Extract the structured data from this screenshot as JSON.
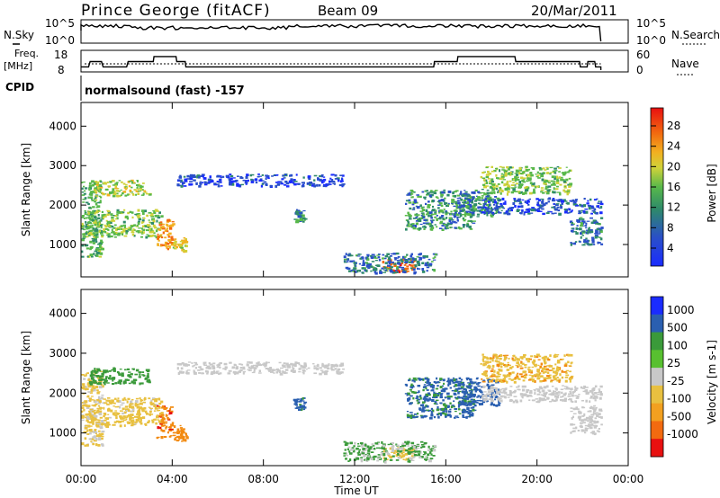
{
  "header": {
    "station": "Prince George (fitACF)",
    "beam": "Beam 09",
    "date": "20/Mar/2011"
  },
  "top_panels": {
    "nsky_label": "N.Sky",
    "nsky_ticks": [
      "10^5",
      "10^0"
    ],
    "nsearch_label": "N.Search",
    "nsearch_ticks": [
      "10^5",
      "10^0"
    ],
    "freq_label_1": "Freq.",
    "freq_label_2": "[MHz]",
    "freq_ticks": [
      "18",
      "8"
    ],
    "nave_label": "Nave",
    "nave_ticks": [
      "60",
      "0"
    ],
    "cpid_label": "CPID",
    "cpid_text": "normalsound (fast) -157",
    "freq_trace_mhz": [
      [
        0.0,
        10.0
      ],
      [
        0.33,
        10.0
      ],
      [
        0.4,
        13.3
      ],
      [
        0.9,
        13.3
      ],
      [
        0.97,
        10.0
      ],
      [
        2.0,
        10.0
      ],
      [
        2.07,
        13.3
      ],
      [
        3.17,
        13.3
      ],
      [
        3.2,
        16.4
      ],
      [
        4.17,
        16.4
      ],
      [
        4.2,
        13.3
      ],
      [
        4.57,
        13.3
      ],
      [
        4.6,
        10.0
      ],
      [
        15.47,
        10.0
      ],
      [
        15.5,
        13.3
      ],
      [
        16.5,
        13.3
      ],
      [
        16.53,
        16.4
      ],
      [
        19.03,
        16.4
      ],
      [
        19.07,
        13.3
      ],
      [
        21.87,
        13.3
      ],
      [
        21.9,
        10.0
      ],
      [
        22.2,
        10.0
      ],
      [
        22.23,
        13.3
      ],
      [
        22.53,
        13.3
      ],
      [
        22.57,
        10.0
      ],
      [
        22.8,
        10.0
      ],
      [
        22.8,
        8.0
      ]
    ]
  },
  "power_panel": {
    "ylabel": "Slant Range [km]",
    "colorbar_label": "Power [dB]",
    "colorbar_ticks": [
      "28",
      "24",
      "20",
      "16",
      "12",
      "8",
      "4"
    ]
  },
  "velocity_panel": {
    "ylabel": "Slant Range [km]",
    "colorbar_label": "Velocity [m s-1]",
    "colorbar_ticks": [
      "1000",
      "500",
      "100",
      "25",
      "-25",
      "-100",
      "-500",
      "-1000"
    ]
  },
  "x_axis": {
    "label": "Time UT",
    "ticks": [
      "00:00",
      "04:00",
      "08:00",
      "12:00",
      "16:00",
      "20:00",
      "00:00"
    ]
  },
  "chart_data": {
    "type": "heatmap",
    "title": "Prince George (fitACF)  Beam 09  20/Mar/2011",
    "xlabel": "Time UT",
    "ylabel": "Slant Range [km]",
    "xlim_hours": [
      0,
      24
    ],
    "ylim_km": [
      180,
      4600
    ],
    "x_tick_hours": [
      0,
      4,
      8,
      12,
      16,
      20,
      24
    ],
    "y_ticks_km": [
      1000,
      2000,
      3000,
      4000
    ],
    "panels": [
      "Power [dB]",
      "Velocity [m s-1]"
    ],
    "data_end_hour": 22.8,
    "echo_regions": [
      {
        "t0": 0.0,
        "t1": 0.9,
        "r0": 700,
        "r1": 2600,
        "power_db": 14,
        "velocity": -30
      },
      {
        "t0": 0.2,
        "t1": 3.5,
        "r0": 1200,
        "r1": 1900,
        "power_db": 16,
        "velocity": -40
      },
      {
        "t0": 0.3,
        "t1": 3.0,
        "r0": 2250,
        "r1": 2650,
        "power_db": 17,
        "velocity": 60
      },
      {
        "t0": 3.3,
        "t1": 4.0,
        "r0": 900,
        "r1": 1700,
        "power_db": 24,
        "velocity": -400
      },
      {
        "t0": 4.0,
        "t1": 4.6,
        "r0": 800,
        "r1": 1200,
        "power_db": 20,
        "velocity": -300
      },
      {
        "t0": 4.2,
        "t1": 11.5,
        "r0": 2500,
        "r1": 2800,
        "power_db": 7,
        "velocity": 10
      },
      {
        "t0": 9.3,
        "t1": 9.8,
        "r0": 1600,
        "r1": 1900,
        "power_db": 12,
        "velocity": 150
      },
      {
        "t0": 13.2,
        "t1": 14.6,
        "r0": 330,
        "r1": 650,
        "power_db": 28,
        "velocity": -60
      },
      {
        "t0": 11.5,
        "t1": 15.5,
        "r0": 300,
        "r1": 800,
        "power_db": 10,
        "velocity": 30
      },
      {
        "t0": 14.2,
        "t1": 17.2,
        "r0": 1400,
        "r1": 2400,
        "power_db": 12,
        "velocity": 120
      },
      {
        "t0": 16.5,
        "t1": 18.3,
        "r0": 1700,
        "r1": 2400,
        "power_db": 11,
        "velocity": 200
      },
      {
        "t0": 17.5,
        "t1": 21.5,
        "r0": 2300,
        "r1": 3000,
        "power_db": 16,
        "velocity": -80
      },
      {
        "t0": 17.5,
        "t1": 22.8,
        "r0": 1800,
        "r1": 2200,
        "power_db": 8,
        "velocity": 15
      },
      {
        "t0": 21.4,
        "t1": 22.8,
        "r0": 1000,
        "r1": 1700,
        "power_db": 10,
        "velocity": -10
      }
    ]
  }
}
